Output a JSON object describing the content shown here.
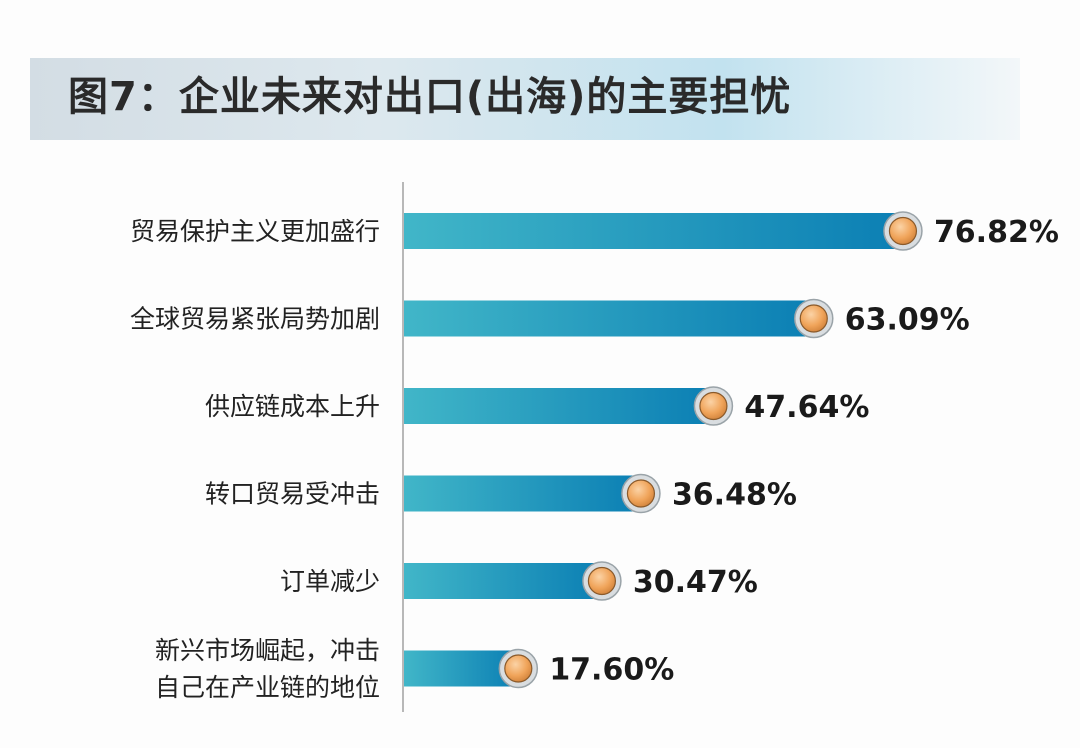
{
  "chart_data": {
    "type": "bar",
    "orientation": "horizontal",
    "title": "图7：企业未来对出口(出海)的主要担忧",
    "categories": [
      "贸易保护主义更加盛行",
      "全球贸易紧张局势加剧",
      "供应链成本上升",
      "转口贸易受冲击",
      "订单减少",
      "新兴市场崛起，冲击\n自己在产业链的地位"
    ],
    "values": [
      76.82,
      63.09,
      47.64,
      36.48,
      30.47,
      17.6
    ],
    "value_labels": [
      "76.82%",
      "63.09%",
      "47.64%",
      "36.48%",
      "30.47%",
      "17.60%"
    ],
    "xlim": [
      0,
      100
    ],
    "grid": false,
    "colors": {
      "bar_start": "#41b6c8",
      "bar_end": "#0b7fb4",
      "marker_fill": "#f0a45a",
      "marker_ring": "#d9dde0",
      "axis": "#b8b8b8"
    }
  }
}
